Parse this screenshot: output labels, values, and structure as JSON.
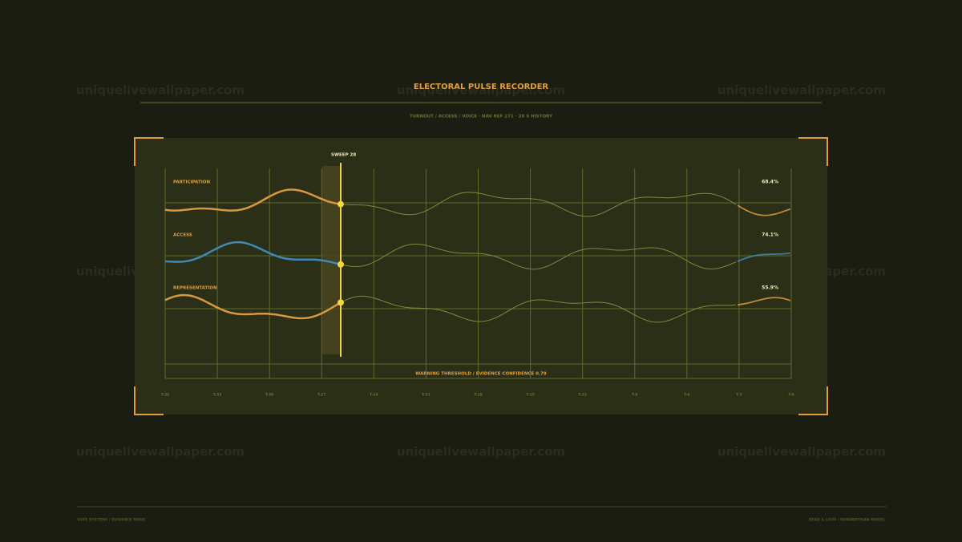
{
  "header": {
    "title": "ELECTORAL PULSE RECORDER",
    "subtitle": "TURNOUT / ACCESS / VOICE  ·  NAV REF 271  ·  20 S HISTORY"
  },
  "sweep_label": "SWEEP 28",
  "channels": [
    {
      "label": "PARTICIPATION",
      "readout": "68.4%"
    },
    {
      "label": "ACCESS",
      "readout": "74.1%"
    },
    {
      "label": "REPRESENTATION",
      "readout": "55.9%"
    }
  ],
  "threshold_label": "WARNING THRESHOLD / EVIDENCE CONFIDENCE 0.79",
  "x_labels": [
    "T-36",
    "T-33",
    "T-30",
    "T-27",
    "T-24",
    "T-21",
    "T-18",
    "T-15",
    "T-12",
    "T-9",
    "T-6",
    "T-3",
    "T-0"
  ],
  "footer": {
    "left": "VOTE SYSTEMS / EVIDENCE MODE",
    "right": "READ & LOOP / NONPARTISAN MODEL"
  },
  "watermark": "uniquelivewallpaper.com"
}
